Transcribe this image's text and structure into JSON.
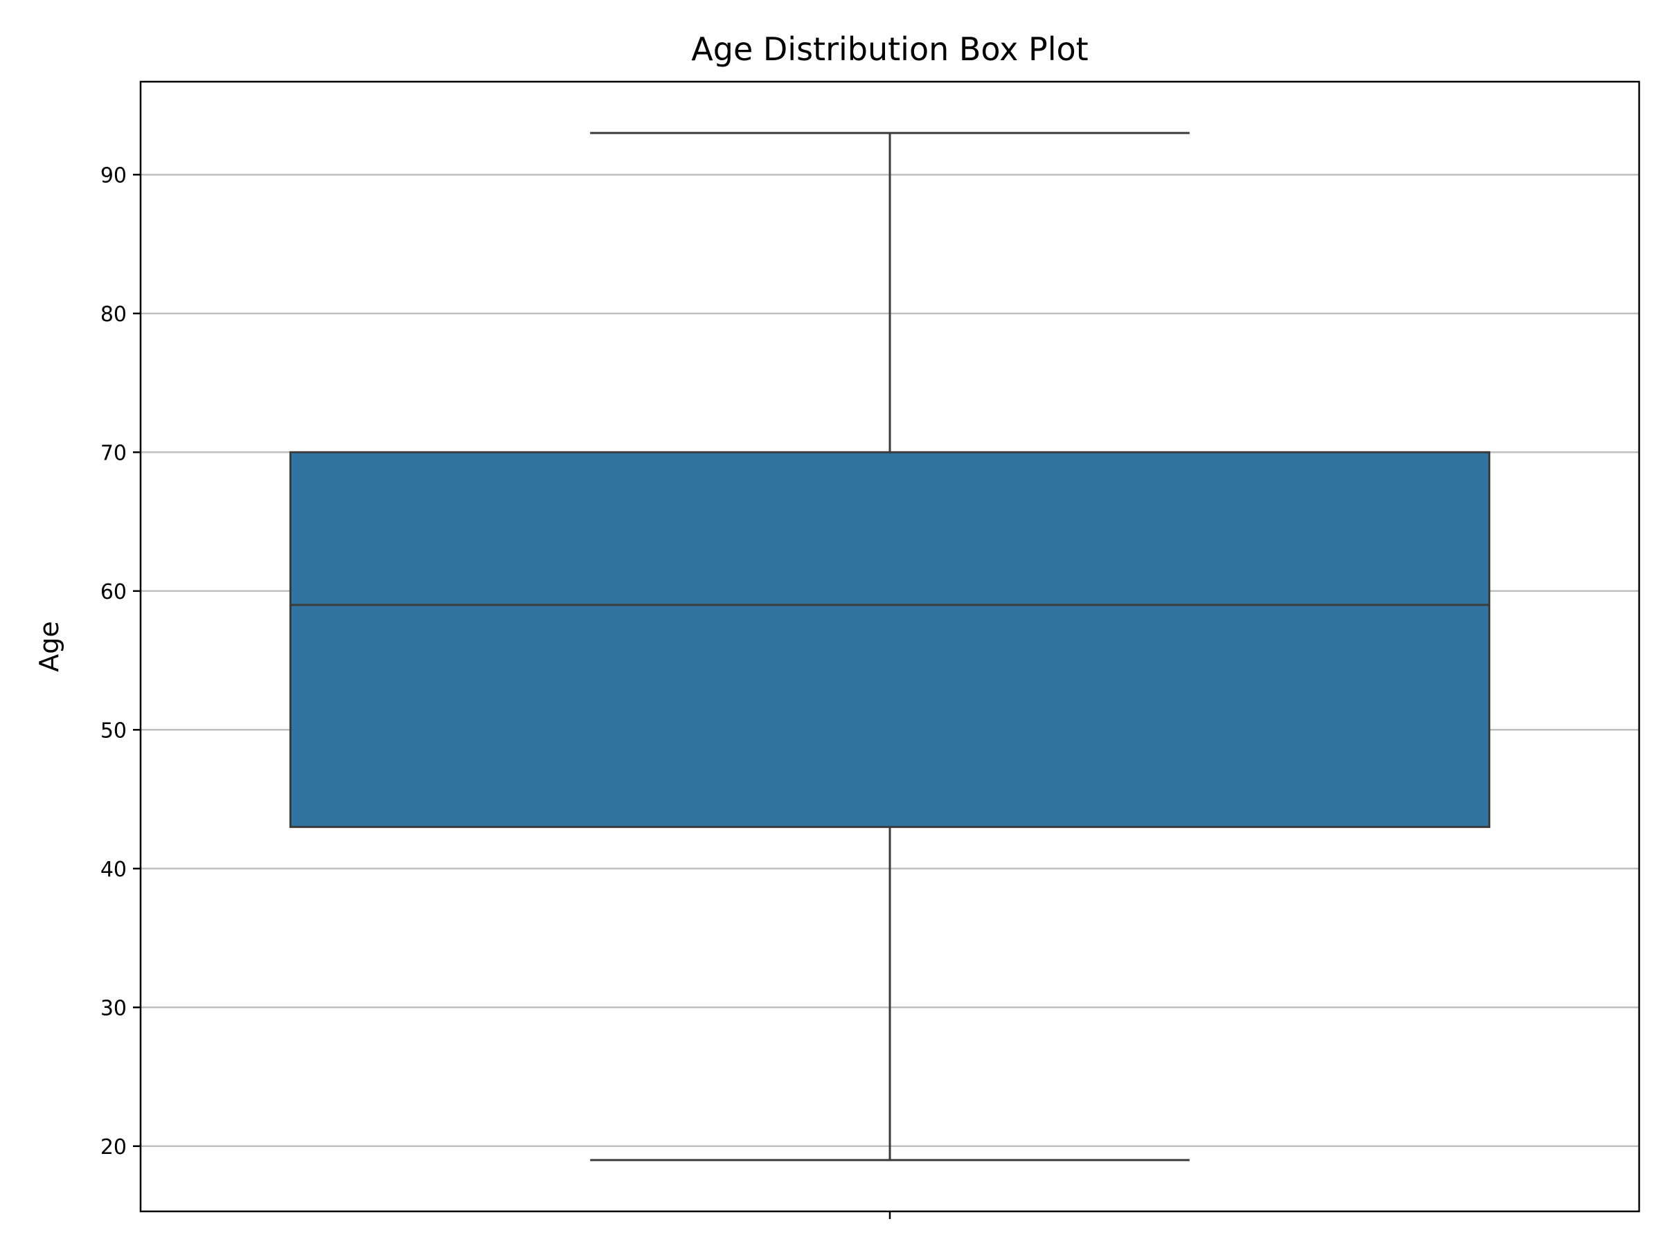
{
  "chart_data": {
    "type": "box",
    "title": "Age Distribution Box Plot",
    "xlabel": "",
    "ylabel": "Age",
    "ylim": [
      15.3,
      96.7
    ],
    "yticks": [
      20,
      30,
      40,
      50,
      60,
      70,
      80,
      90
    ],
    "grid": "y-major",
    "boxes": [
      {
        "name": "Age",
        "whisker_low": 19,
        "q1": 43,
        "median": 59,
        "q3": 70,
        "whisker_high": 93,
        "color": "#3274a1",
        "edge_color": "#3b3b3b"
      }
    ]
  }
}
